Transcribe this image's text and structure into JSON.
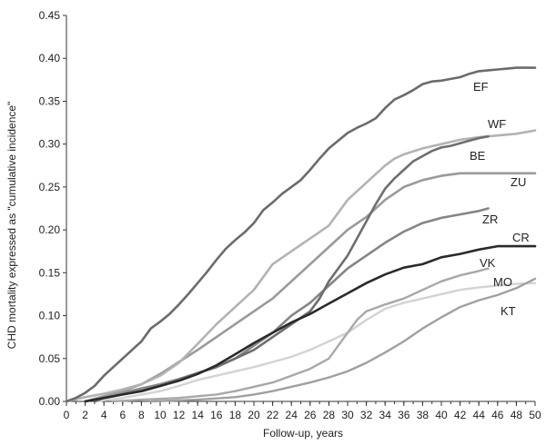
{
  "chart_data": {
    "type": "line",
    "title": "",
    "xlabel": "Follow-up, years",
    "ylabel": "CHD mortality expressed as \"cumulative incidence\"",
    "xlim": [
      0,
      50
    ],
    "ylim": [
      0,
      0.45
    ],
    "x_ticks": [
      "0",
      "2",
      "4",
      "6",
      "8",
      "10",
      "12",
      "14",
      "16",
      "18",
      "20",
      "22",
      "24",
      "26",
      "28",
      "30",
      "32",
      "34",
      "36",
      "38",
      "40",
      "42",
      "44",
      "46",
      "48",
      "50"
    ],
    "y_ticks": [
      "0.00",
      "0.05",
      "0.10",
      "0.15",
      "0.20",
      "0.25",
      "0.30",
      "0.35",
      "0.40",
      "0.45"
    ],
    "grid": false,
    "legend": "inline labels at line ends",
    "series": [
      {
        "name": "EF",
        "color": "#6b6b6b",
        "width": 2.6,
        "points": [
          [
            0,
            0
          ],
          [
            1,
            0.004
          ],
          [
            2,
            0.01
          ],
          [
            3,
            0.018
          ],
          [
            4,
            0.03
          ],
          [
            5,
            0.04
          ],
          [
            6,
            0.05
          ],
          [
            7,
            0.06
          ],
          [
            8,
            0.07
          ],
          [
            9,
            0.085
          ],
          [
            10,
            0.093
          ],
          [
            11,
            0.102
          ],
          [
            12,
            0.113
          ],
          [
            13,
            0.125
          ],
          [
            14,
            0.138
          ],
          [
            15,
            0.151
          ],
          [
            16,
            0.165
          ],
          [
            17,
            0.178
          ],
          [
            18,
            0.188
          ],
          [
            19,
            0.197
          ],
          [
            20,
            0.208
          ],
          [
            21,
            0.223
          ],
          [
            22,
            0.232
          ],
          [
            23,
            0.242
          ],
          [
            24,
            0.25
          ],
          [
            25,
            0.258
          ],
          [
            26,
            0.27
          ],
          [
            27,
            0.283
          ],
          [
            28,
            0.295
          ],
          [
            29,
            0.304
          ],
          [
            30,
            0.313
          ],
          [
            31,
            0.319
          ],
          [
            32,
            0.324
          ],
          [
            33,
            0.33
          ],
          [
            34,
            0.342
          ],
          [
            35,
            0.352
          ],
          [
            36,
            0.357
          ],
          [
            37,
            0.363
          ],
          [
            38,
            0.37
          ],
          [
            39,
            0.373
          ],
          [
            40,
            0.374
          ],
          [
            41,
            0.376
          ],
          [
            42,
            0.378
          ],
          [
            43,
            0.382
          ],
          [
            44,
            0.385
          ],
          [
            45,
            0.386
          ],
          [
            46,
            0.387
          ],
          [
            47,
            0.388
          ],
          [
            48,
            0.389
          ],
          [
            49,
            0.389
          ],
          [
            50,
            0.389
          ]
        ]
      },
      {
        "name": "WF",
        "color": "#b3b3b3",
        "width": 2.6,
        "points": [
          [
            0,
            0
          ],
          [
            2,
            0.005
          ],
          [
            4,
            0.009
          ],
          [
            6,
            0.014
          ],
          [
            8,
            0.02
          ],
          [
            10,
            0.03
          ],
          [
            12,
            0.045
          ],
          [
            14,
            0.067
          ],
          [
            16,
            0.09
          ],
          [
            18,
            0.11
          ],
          [
            20,
            0.13
          ],
          [
            22,
            0.16
          ],
          [
            24,
            0.175
          ],
          [
            26,
            0.19
          ],
          [
            28,
            0.205
          ],
          [
            29,
            0.22
          ],
          [
            30,
            0.235
          ],
          [
            31,
            0.245
          ],
          [
            32,
            0.255
          ],
          [
            33,
            0.265
          ],
          [
            34,
            0.275
          ],
          [
            35,
            0.283
          ],
          [
            36,
            0.288
          ],
          [
            38,
            0.295
          ],
          [
            40,
            0.3
          ],
          [
            42,
            0.305
          ],
          [
            44,
            0.308
          ],
          [
            46,
            0.31
          ],
          [
            48,
            0.312
          ],
          [
            50,
            0.316
          ]
        ]
      },
      {
        "name": "BE",
        "color": "#6e6e6e",
        "width": 2.6,
        "points": [
          [
            3,
            0
          ],
          [
            4,
            0.004
          ],
          [
            6,
            0.008
          ],
          [
            8,
            0.012
          ],
          [
            10,
            0.018
          ],
          [
            12,
            0.025
          ],
          [
            14,
            0.033
          ],
          [
            16,
            0.04
          ],
          [
            18,
            0.05
          ],
          [
            20,
            0.06
          ],
          [
            22,
            0.075
          ],
          [
            24,
            0.09
          ],
          [
            26,
            0.105
          ],
          [
            27,
            0.12
          ],
          [
            28,
            0.14
          ],
          [
            29,
            0.155
          ],
          [
            30,
            0.17
          ],
          [
            31,
            0.19
          ],
          [
            32,
            0.21
          ],
          [
            33,
            0.23
          ],
          [
            34,
            0.248
          ],
          [
            35,
            0.26
          ],
          [
            36,
            0.27
          ],
          [
            37,
            0.28
          ],
          [
            38,
            0.286
          ],
          [
            39,
            0.292
          ],
          [
            40,
            0.296
          ],
          [
            41,
            0.298
          ],
          [
            42,
            0.301
          ],
          [
            43,
            0.304
          ],
          [
            44,
            0.307
          ],
          [
            45,
            0.309
          ]
        ]
      },
      {
        "name": "ZU",
        "color": "#9a9a9a",
        "width": 2.6,
        "points": [
          [
            2,
            0
          ],
          [
            4,
            0.006
          ],
          [
            6,
            0.012
          ],
          [
            8,
            0.02
          ],
          [
            10,
            0.032
          ],
          [
            12,
            0.046
          ],
          [
            14,
            0.06
          ],
          [
            16,
            0.075
          ],
          [
            18,
            0.09
          ],
          [
            20,
            0.105
          ],
          [
            22,
            0.12
          ],
          [
            24,
            0.14
          ],
          [
            26,
            0.16
          ],
          [
            28,
            0.18
          ],
          [
            30,
            0.2
          ],
          [
            32,
            0.215
          ],
          [
            34,
            0.235
          ],
          [
            36,
            0.25
          ],
          [
            38,
            0.258
          ],
          [
            40,
            0.263
          ],
          [
            42,
            0.266
          ],
          [
            44,
            0.266
          ],
          [
            46,
            0.266
          ],
          [
            48,
            0.266
          ],
          [
            50,
            0.266
          ]
        ]
      },
      {
        "name": "ZR",
        "color": "#858585",
        "width": 2.6,
        "points": [
          [
            2,
            0
          ],
          [
            4,
            0.005
          ],
          [
            6,
            0.01
          ],
          [
            8,
            0.015
          ],
          [
            10,
            0.02
          ],
          [
            12,
            0.026
          ],
          [
            14,
            0.033
          ],
          [
            16,
            0.04
          ],
          [
            18,
            0.05
          ],
          [
            20,
            0.065
          ],
          [
            22,
            0.08
          ],
          [
            24,
            0.1
          ],
          [
            26,
            0.115
          ],
          [
            28,
            0.135
          ],
          [
            30,
            0.155
          ],
          [
            32,
            0.17
          ],
          [
            34,
            0.185
          ],
          [
            36,
            0.198
          ],
          [
            38,
            0.208
          ],
          [
            40,
            0.214
          ],
          [
            42,
            0.218
          ],
          [
            44,
            0.222
          ],
          [
            45,
            0.225
          ]
        ]
      },
      {
        "name": "CR",
        "color": "#2a2a2a",
        "width": 2.6,
        "points": [
          [
            2,
            0
          ],
          [
            4,
            0.004
          ],
          [
            6,
            0.008
          ],
          [
            8,
            0.012
          ],
          [
            10,
            0.018
          ],
          [
            12,
            0.024
          ],
          [
            14,
            0.032
          ],
          [
            16,
            0.042
          ],
          [
            18,
            0.055
          ],
          [
            20,
            0.068
          ],
          [
            22,
            0.08
          ],
          [
            24,
            0.092
          ],
          [
            26,
            0.102
          ],
          [
            28,
            0.114
          ],
          [
            30,
            0.126
          ],
          [
            32,
            0.138
          ],
          [
            34,
            0.148
          ],
          [
            36,
            0.156
          ],
          [
            38,
            0.16
          ],
          [
            40,
            0.168
          ],
          [
            42,
            0.172
          ],
          [
            44,
            0.177
          ],
          [
            46,
            0.181
          ],
          [
            48,
            0.181
          ],
          [
            50,
            0.181
          ]
        ]
      },
      {
        "name": "VK",
        "color": "#a8a8a8",
        "width": 2.4,
        "points": [
          [
            5,
            0
          ],
          [
            8,
            0.002
          ],
          [
            12,
            0.004
          ],
          [
            16,
            0.008
          ],
          [
            18,
            0.012
          ],
          [
            20,
            0.017
          ],
          [
            22,
            0.022
          ],
          [
            24,
            0.03
          ],
          [
            26,
            0.038
          ],
          [
            28,
            0.05
          ],
          [
            29,
            0.065
          ],
          [
            30,
            0.08
          ],
          [
            31,
            0.095
          ],
          [
            32,
            0.105
          ],
          [
            34,
            0.113
          ],
          [
            36,
            0.12
          ],
          [
            38,
            0.13
          ],
          [
            40,
            0.14
          ],
          [
            42,
            0.147
          ],
          [
            44,
            0.152
          ],
          [
            45,
            0.155
          ]
        ]
      },
      {
        "name": "MO",
        "color": "#d3d3d3",
        "width": 2.4,
        "points": [
          [
            3,
            0
          ],
          [
            6,
            0.004
          ],
          [
            8,
            0.008
          ],
          [
            10,
            0.012
          ],
          [
            12,
            0.018
          ],
          [
            14,
            0.025
          ],
          [
            16,
            0.03
          ],
          [
            18,
            0.035
          ],
          [
            20,
            0.04
          ],
          [
            22,
            0.046
          ],
          [
            24,
            0.052
          ],
          [
            26,
            0.06
          ],
          [
            28,
            0.07
          ],
          [
            30,
            0.08
          ],
          [
            32,
            0.095
          ],
          [
            34,
            0.108
          ],
          [
            36,
            0.115
          ],
          [
            38,
            0.12
          ],
          [
            40,
            0.125
          ],
          [
            42,
            0.13
          ],
          [
            44,
            0.133
          ],
          [
            46,
            0.135
          ],
          [
            48,
            0.137
          ],
          [
            50,
            0.138
          ]
        ]
      },
      {
        "name": "KT",
        "color": "#a0a0a0",
        "width": 2.4,
        "points": [
          [
            9,
            0
          ],
          [
            14,
            0.002
          ],
          [
            18,
            0.005
          ],
          [
            20,
            0.008
          ],
          [
            22,
            0.012
          ],
          [
            24,
            0.017
          ],
          [
            26,
            0.022
          ],
          [
            28,
            0.028
          ],
          [
            30,
            0.035
          ],
          [
            32,
            0.045
          ],
          [
            34,
            0.057
          ],
          [
            36,
            0.07
          ],
          [
            38,
            0.085
          ],
          [
            40,
            0.098
          ],
          [
            42,
            0.11
          ],
          [
            44,
            0.118
          ],
          [
            46,
            0.124
          ],
          [
            48,
            0.132
          ],
          [
            50,
            0.143
          ]
        ]
      }
    ]
  }
}
